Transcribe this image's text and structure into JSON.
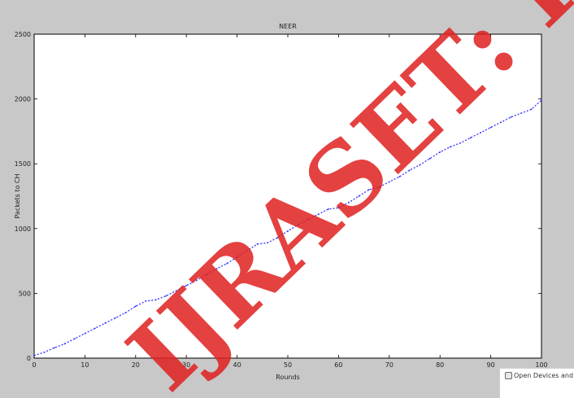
{
  "chart_data": {
    "type": "line",
    "title": "NEER",
    "xlabel": "Rounds",
    "ylabel": "Packets to CH",
    "xlim": [
      0,
      100
    ],
    "ylim": [
      0,
      2500
    ],
    "xticks": [
      0,
      10,
      20,
      30,
      40,
      50,
      60,
      70,
      80,
      90,
      100
    ],
    "yticks": [
      0,
      500,
      1000,
      1500,
      2000,
      2500
    ],
    "grid": false,
    "series": [
      {
        "color": "#3333ff",
        "x": [
          0,
          2,
          4,
          6,
          8,
          10,
          12,
          14,
          16,
          18,
          20,
          22,
          24,
          26,
          28,
          30,
          32,
          34,
          36,
          38,
          40,
          42,
          44,
          46,
          48,
          50,
          52,
          54,
          56,
          58,
          60,
          62,
          64,
          66,
          68,
          70,
          72,
          74,
          76,
          78,
          80,
          82,
          84,
          86,
          88,
          90,
          92,
          94,
          96,
          98,
          100
        ],
        "y": [
          20,
          45,
          80,
          110,
          150,
          190,
          230,
          270,
          310,
          350,
          400,
          440,
          450,
          480,
          520,
          560,
          600,
          645,
          690,
          730,
          780,
          830,
          880,
          890,
          930,
          980,
          1030,
          1070,
          1110,
          1150,
          1160,
          1200,
          1250,
          1300,
          1320,
          1360,
          1400,
          1450,
          1490,
          1540,
          1590,
          1630,
          1660,
          1700,
          1740,
          1780,
          1820,
          1860,
          1890,
          1920,
          1990
        ]
      }
    ]
  },
  "watermark": {
    "text": "IJRASET: IS"
  },
  "taskbar_tip": {
    "label": "Open Devices and Prin"
  }
}
